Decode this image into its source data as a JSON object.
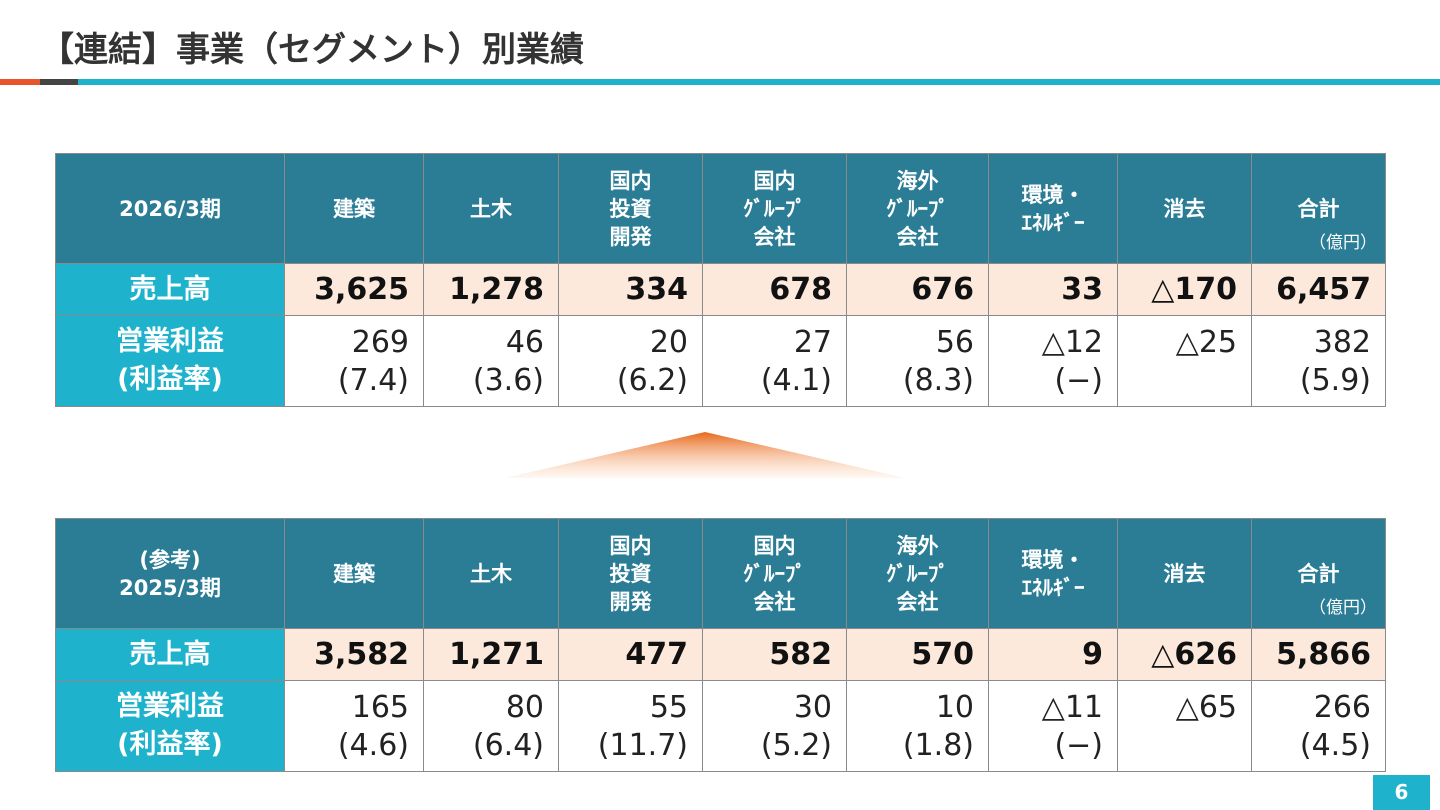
{
  "header": {
    "title": "【連結】事業（セグメント）別業績"
  },
  "tables": [
    {
      "period": [
        "2026/3期"
      ],
      "columns": [
        [
          "建築"
        ],
        [
          "土木"
        ],
        [
          "国内",
          "投資",
          "開発"
        ],
        [
          "国内",
          "ｸﾞﾙｰﾌﾟ",
          "会社"
        ],
        [
          "海外",
          "ｸﾞﾙｰﾌﾟ",
          "会社"
        ],
        [
          "環境・",
          "ｴﾈﾙｷﾞｰ"
        ],
        [
          "消去"
        ],
        [
          "合計"
        ]
      ],
      "unit": "（億円）",
      "sales": {
        "label": [
          "売上高"
        ],
        "values": [
          "3,625",
          "1,278",
          "334",
          "678",
          "676",
          "33",
          "△170",
          "6,457"
        ]
      },
      "profit": {
        "label": [
          "営業利益",
          "(利益率)"
        ],
        "values": [
          [
            "269",
            "(7.4)"
          ],
          [
            "46",
            "(3.6)"
          ],
          [
            "20",
            "(6.2)"
          ],
          [
            "27",
            "(4.1)"
          ],
          [
            "56",
            "(8.3)"
          ],
          [
            "△12",
            "(−)"
          ],
          [
            "△25"
          ],
          [
            "382",
            "(5.9)"
          ]
        ]
      }
    },
    {
      "period": [
        "(参考)",
        "2025/3期"
      ],
      "columns": [
        [
          "建築"
        ],
        [
          "土木"
        ],
        [
          "国内",
          "投資",
          "開発"
        ],
        [
          "国内",
          "ｸﾞﾙｰﾌﾟ",
          "会社"
        ],
        [
          "海外",
          "ｸﾞﾙｰﾌﾟ",
          "会社"
        ],
        [
          "環境・",
          "ｴﾈﾙｷﾞｰ"
        ],
        [
          "消去"
        ],
        [
          "合計"
        ]
      ],
      "unit": "（億円）",
      "sales": {
        "label": [
          "売上高"
        ],
        "values": [
          "3,582",
          "1,271",
          "477",
          "582",
          "570",
          "9",
          "△626",
          "5,866"
        ]
      },
      "profit": {
        "label": [
          "営業利益",
          "(利益率)"
        ],
        "values": [
          [
            "165",
            "(4.6)"
          ],
          [
            "80",
            "(6.4)"
          ],
          [
            "55",
            "(11.7)"
          ],
          [
            "30",
            "(5.2)"
          ],
          [
            "10",
            "(1.8)"
          ],
          [
            "△11",
            "(−)"
          ],
          [
            "△65"
          ],
          [
            "266",
            "(4.5)"
          ]
        ]
      }
    }
  ],
  "footer": {
    "page": "6"
  }
}
